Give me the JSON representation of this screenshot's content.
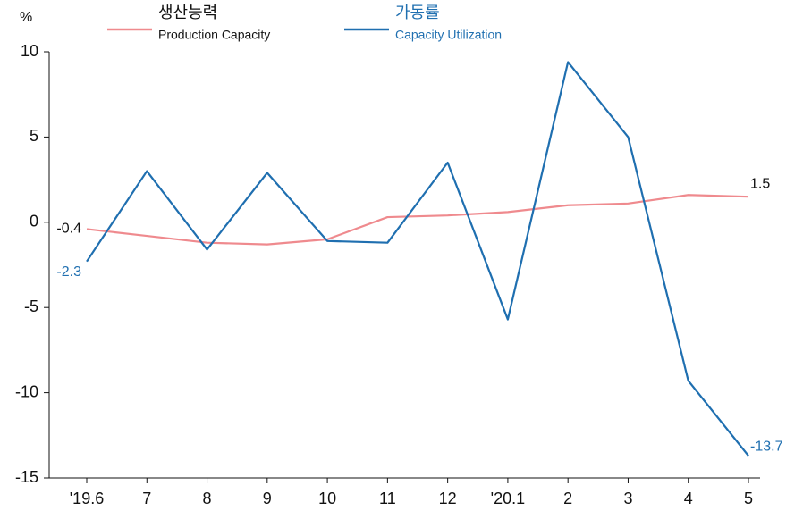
{
  "chart_data": {
    "type": "line",
    "y_label": "%",
    "categories": [
      "'19.6",
      "7",
      "8",
      "9",
      "10",
      "11",
      "12",
      "'20.1",
      "2",
      "3",
      "4",
      "5"
    ],
    "series": [
      {
        "name": "생산능력",
        "name_en": "Production Capacity",
        "color": "#ef8a8e",
        "values": [
          -0.4,
          -0.8,
          -1.2,
          -1.3,
          -1.0,
          0.3,
          0.4,
          0.6,
          1.0,
          1.1,
          1.6,
          1.5
        ]
      },
      {
        "name": "가동률",
        "name_en": "Capacity Utilization",
        "color": "#1f6fb0",
        "values": [
          -2.3,
          3.0,
          -1.6,
          2.9,
          -1.1,
          -1.2,
          3.5,
          -5.7,
          9.4,
          5.0,
          -9.3,
          -13.7
        ]
      }
    ],
    "ylim": [
      -15,
      10
    ],
    "yticks": [
      -15,
      -10,
      -5,
      0,
      5,
      10
    ],
    "grid": false
  }
}
